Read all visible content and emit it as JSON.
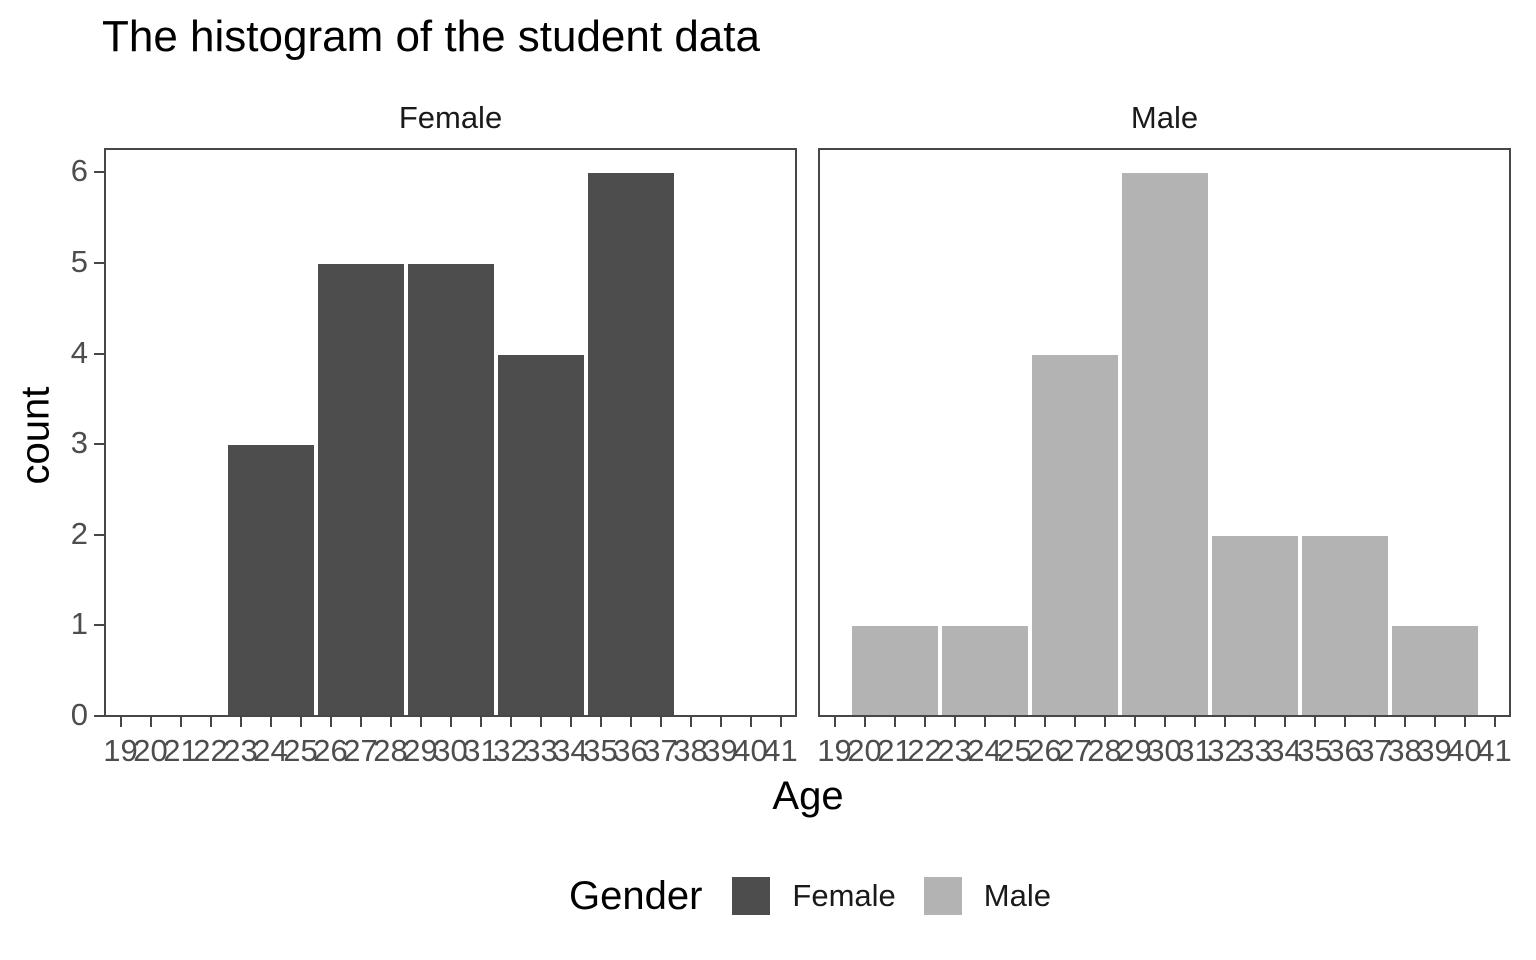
{
  "title": "The histogram of the student data",
  "axes": {
    "x_label": "Age",
    "y_label": "count",
    "x_ticks": [
      19,
      20,
      21,
      22,
      23,
      24,
      25,
      26,
      27,
      28,
      29,
      30,
      31,
      32,
      33,
      34,
      35,
      36,
      37,
      38,
      39,
      40,
      41
    ],
    "y_ticks": [
      0,
      1,
      2,
      3,
      4,
      5,
      6
    ]
  },
  "legend": {
    "title": "Gender",
    "items": [
      {
        "label": "Female",
        "color": "#4d4d4d"
      },
      {
        "label": "Male",
        "color": "#b3b3b3"
      }
    ]
  },
  "colors": {
    "female_fill": "#4d4d4d",
    "male_fill": "#b3b3b3",
    "panel_border": "#474747",
    "axis_text": "#4d4d4d",
    "title_text": "#000000",
    "bar_stroke": "#ffffff",
    "background": "#ffffff"
  },
  "chart_data": {
    "type": "bar",
    "subtype": "faceted-histogram",
    "title": "The histogram of the student data",
    "xlabel": "Age",
    "ylabel": "count",
    "binwidth": 3,
    "xlim": [
      18.45,
      41.55
    ],
    "ylim": [
      0,
      6.27
    ],
    "x_ticks": [
      19,
      20,
      21,
      22,
      23,
      24,
      25,
      26,
      27,
      28,
      29,
      30,
      31,
      32,
      33,
      34,
      35,
      36,
      37,
      38,
      39,
      40,
      41
    ],
    "y_ticks": [
      0,
      1,
      2,
      3,
      4,
      5,
      6
    ],
    "grid": false,
    "legend_position": "bottom",
    "facets": [
      {
        "name": "Female",
        "fill": "#4d4d4d",
        "bins": [
          {
            "x_start": 22.5,
            "x_end": 25.5,
            "count": 3
          },
          {
            "x_start": 25.5,
            "x_end": 28.5,
            "count": 5
          },
          {
            "x_start": 28.5,
            "x_end": 31.5,
            "count": 5
          },
          {
            "x_start": 31.5,
            "x_end": 34.5,
            "count": 4
          },
          {
            "x_start": 34.5,
            "x_end": 37.5,
            "count": 6
          }
        ]
      },
      {
        "name": "Male",
        "fill": "#b3b3b3",
        "bins": [
          {
            "x_start": 19.5,
            "x_end": 22.5,
            "count": 1
          },
          {
            "x_start": 22.5,
            "x_end": 25.5,
            "count": 1
          },
          {
            "x_start": 25.5,
            "x_end": 28.5,
            "count": 4
          },
          {
            "x_start": 28.5,
            "x_end": 31.5,
            "count": 6
          },
          {
            "x_start": 31.5,
            "x_end": 34.5,
            "count": 2
          },
          {
            "x_start": 34.5,
            "x_end": 37.5,
            "count": 2
          },
          {
            "x_start": 37.5,
            "x_end": 40.5,
            "count": 1
          }
        ]
      }
    ]
  }
}
